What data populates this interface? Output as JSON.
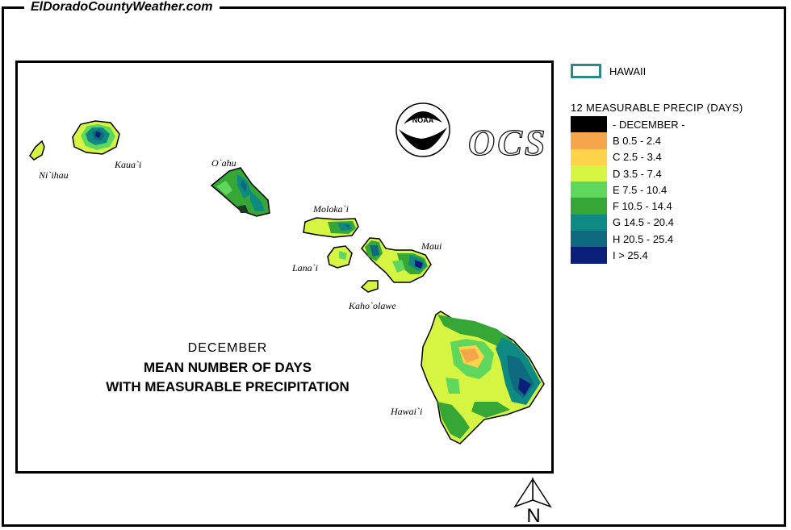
{
  "site": {
    "title": "ElDoradoCountyWeather.com"
  },
  "map": {
    "caption_month": "DECEMBER",
    "caption_line1": "MEAN NUMBER OF DAYS",
    "caption_line2": "WITH MEASURABLE PRECIPITATION",
    "islands": [
      "Ni`ihau",
      "Kaua`i",
      "O`ahu",
      "Moloka`i",
      "Lana`i",
      "Maui",
      "Kaho`olawe",
      "Hawai`i"
    ],
    "logo_text": "NOAA",
    "ocs_text": "OCS"
  },
  "legend": {
    "state_label": "HAWAII",
    "state_color": "#2a8a8a",
    "title": "12 MEASURABLE  PRECIP (DAYS)",
    "items": [
      {
        "label": "- DECEMBER -",
        "color": "#000000"
      },
      {
        "label": "B 0.5 - 2.4",
        "color": "#f5a64a"
      },
      {
        "label": "C 2.5 - 3.4",
        "color": "#fdd34a"
      },
      {
        "label": "D 3.5 - 7.4",
        "color": "#d6f542"
      },
      {
        "label": "E 7.5 - 10.4",
        "color": "#5fd65c"
      },
      {
        "label": "F 10.5 - 14.4",
        "color": "#36a636"
      },
      {
        "label": "G 14.5 - 20.4",
        "color": "#0e8a82"
      },
      {
        "label": "H 20.5 - 25.4",
        "color": "#0f6a80"
      },
      {
        "label": "I > 25.4",
        "color": "#0c1f78"
      }
    ]
  },
  "north": {
    "label": "N"
  }
}
